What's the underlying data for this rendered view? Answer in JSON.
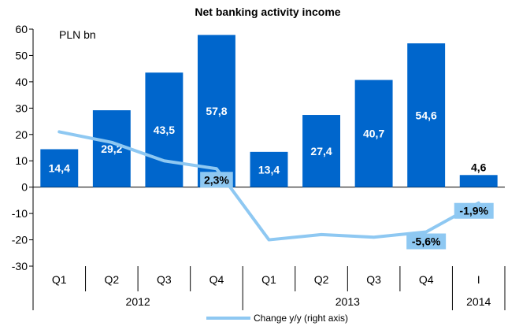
{
  "chart_data": {
    "type": "bar",
    "title": "Net banking activity income",
    "unit_label": "PLN bn",
    "categories": [
      "Q1",
      "Q2",
      "Q3",
      "Q4",
      "Q1",
      "Q2",
      "Q3",
      "Q4",
      "I"
    ],
    "groups": [
      {
        "label": "2012",
        "span": 4
      },
      {
        "label": "2013",
        "span": 4
      },
      {
        "label": "2014",
        "span": 1
      }
    ],
    "series": [
      {
        "type": "bar",
        "axis": "left",
        "color": "#0066cc",
        "values": [
          14.4,
          29.2,
          43.5,
          57.8,
          13.4,
          27.4,
          40.7,
          54.6,
          4.6
        ],
        "labels": [
          "14,4",
          "29,2",
          "43,5",
          "57,8",
          "13,4",
          "27,4",
          "40,7",
          "54,6",
          "4,6"
        ]
      },
      {
        "type": "line",
        "axis": "right",
        "name": "Change y/y (right axis)",
        "color": "#8ec8f2",
        "values": [
          21,
          17,
          10,
          7,
          -20,
          -18,
          -19,
          -17,
          -6
        ],
        "point_labels": [
          {
            "index": 3,
            "text": "2,3%"
          },
          {
            "index": 7,
            "text": "-5,6%"
          },
          {
            "index": 8,
            "text": "-1,9%"
          }
        ]
      }
    ],
    "ylim": [
      -30,
      60
    ],
    "yticks": [
      -30,
      -20,
      -10,
      0,
      10,
      20,
      30,
      40,
      50,
      60
    ],
    "legend_position": "bottom",
    "grid": false
  }
}
